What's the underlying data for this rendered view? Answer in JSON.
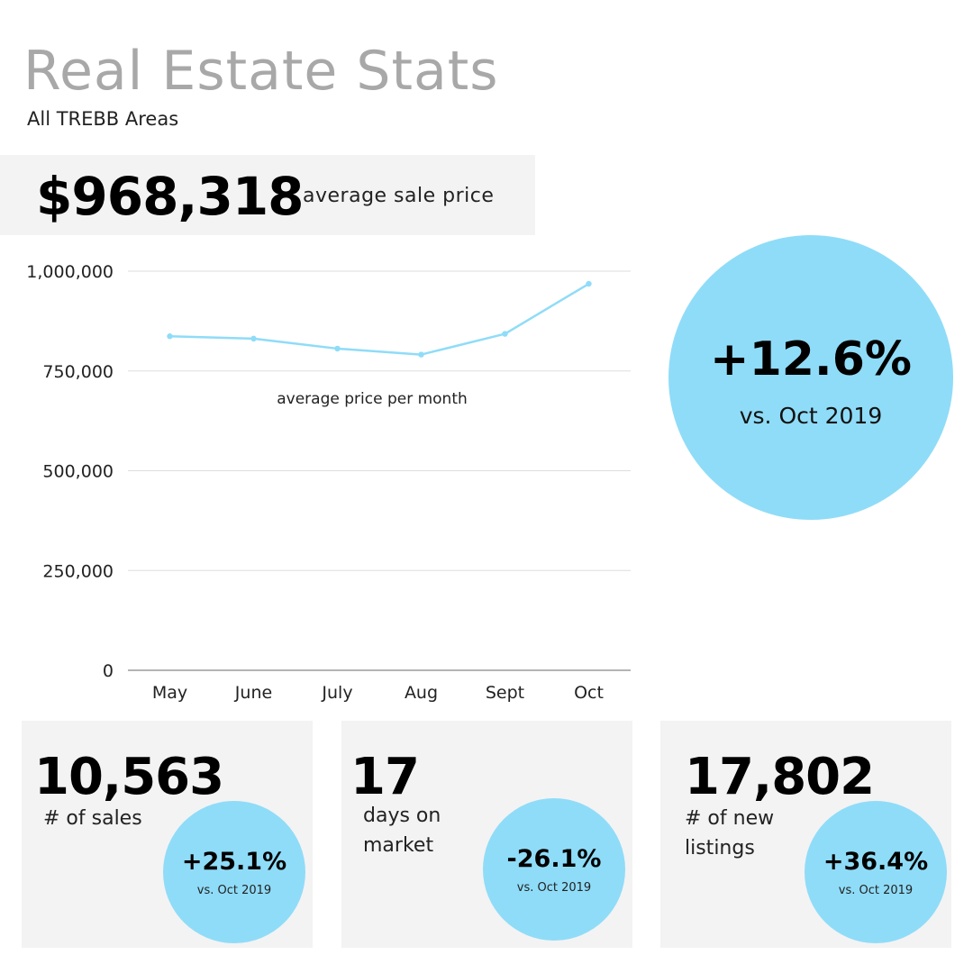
{
  "header": {
    "title": "Real Estate Stats",
    "subtitle": "All TREBB Areas"
  },
  "headline": {
    "value": "$968,318",
    "label": "average sale price"
  },
  "highlight": {
    "change": "+12.6%",
    "comparison": "vs. Oct 2019"
  },
  "chart_data": {
    "type": "line",
    "title": "average price per month",
    "categories": [
      "May",
      "June",
      "July",
      "Aug",
      "Sept",
      "Oct"
    ],
    "values": [
      837000,
      831000,
      806000,
      791000,
      843000,
      968318
    ],
    "ylim": [
      0,
      1000000
    ],
    "yticks": [
      0,
      250000,
      500000,
      750000,
      1000000
    ],
    "ytick_labels": [
      "0",
      "250,000",
      "500,000",
      "750,000",
      "1,000,000"
    ],
    "grid": true,
    "color": "#8fdcf8"
  },
  "cards": [
    {
      "value": "10,563",
      "label": "# of sales",
      "change": "+25.1%",
      "comparison": "vs. Oct 2019"
    },
    {
      "value": "17",
      "label": "days on market",
      "change": "-26.1%",
      "comparison": "vs. Oct 2019"
    },
    {
      "value": "17,802",
      "label": "# of new listings",
      "change": "+36.4%",
      "comparison": "vs. Oct 2019"
    }
  ],
  "colors": {
    "accent": "#8fdcf8",
    "panel": "#f3f3f3",
    "title": "#a8a8a8"
  }
}
